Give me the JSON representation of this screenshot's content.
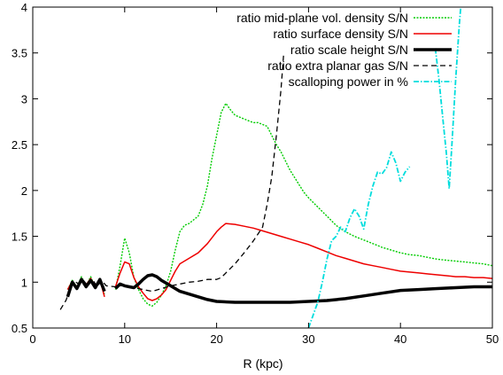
{
  "chart_data": {
    "type": "line",
    "xlabel": "R (kpc)",
    "ylabel": "",
    "title": "",
    "xlim": [
      0,
      50
    ],
    "ylim": [
      0.5,
      4
    ],
    "xticks": [
      "0",
      "10",
      "20",
      "30",
      "40",
      "50"
    ],
    "yticks": [
      "0.5",
      "1",
      "1.5",
      "2",
      "2.5",
      "3",
      "3.5",
      "4"
    ],
    "grid": false,
    "legend_position": "top-right",
    "series": [
      {
        "name": "ratio mid-plane vol. density S/N",
        "color": "#00cc00",
        "dash": "dotted-dense",
        "segments": [
          [
            [
              3.8,
              0.92
            ],
            [
              4.3,
              1.02
            ],
            [
              4.8,
              0.95
            ],
            [
              5.3,
              1.06
            ],
            [
              5.8,
              0.96
            ],
            [
              6.3,
              1.06
            ],
            [
              6.8,
              0.94
            ],
            [
              7.3,
              1.04
            ],
            [
              7.8,
              0.86
            ]
          ],
          [
            [
              9.0,
              0.92
            ],
            [
              9.5,
              1.18
            ],
            [
              10.0,
              1.48
            ],
            [
              10.5,
              1.32
            ],
            [
              11.0,
              1.05
            ],
            [
              11.5,
              0.92
            ],
            [
              12.0,
              0.82
            ],
            [
              12.5,
              0.76
            ],
            [
              13.0,
              0.74
            ],
            [
              13.5,
              0.78
            ],
            [
              14.0,
              0.86
            ],
            [
              14.5,
              0.96
            ],
            [
              15.0,
              1.12
            ],
            [
              15.5,
              1.35
            ],
            [
              16.0,
              1.55
            ],
            [
              16.5,
              1.62
            ],
            [
              17.0,
              1.64
            ],
            [
              17.5,
              1.68
            ],
            [
              18.0,
              1.72
            ],
            [
              18.5,
              1.85
            ],
            [
              19.0,
              2.05
            ],
            [
              19.5,
              2.35
            ],
            [
              20.0,
              2.6
            ],
            [
              20.5,
              2.85
            ],
            [
              21.0,
              2.95
            ],
            [
              21.5,
              2.88
            ],
            [
              22.0,
              2.82
            ],
            [
              22.5,
              2.8
            ],
            [
              23.0,
              2.78
            ],
            [
              23.5,
              2.76
            ],
            [
              24.0,
              2.74
            ],
            [
              24.5,
              2.74
            ],
            [
              25.0,
              2.72
            ],
            [
              25.5,
              2.7
            ],
            [
              26.0,
              2.6
            ],
            [
              26.5,
              2.5
            ],
            [
              27.0,
              2.42
            ],
            [
              27.5,
              2.32
            ],
            [
              28.0,
              2.22
            ],
            [
              28.5,
              2.14
            ],
            [
              29.0,
              2.06
            ],
            [
              29.5,
              1.98
            ],
            [
              30.0,
              1.92
            ],
            [
              31.0,
              1.82
            ],
            [
              32.0,
              1.72
            ],
            [
              33.0,
              1.62
            ],
            [
              34.0,
              1.55
            ],
            [
              35.0,
              1.5
            ],
            [
              36.0,
              1.46
            ],
            [
              37.0,
              1.42
            ],
            [
              38.0,
              1.38
            ],
            [
              39.0,
              1.35
            ],
            [
              40.0,
              1.32
            ],
            [
              41.0,
              1.3
            ],
            [
              42.0,
              1.29
            ],
            [
              43.0,
              1.27
            ],
            [
              44.0,
              1.25
            ],
            [
              45.0,
              1.24
            ],
            [
              46.0,
              1.23
            ],
            [
              47.0,
              1.22
            ],
            [
              48.0,
              1.21
            ],
            [
              49.0,
              1.2
            ],
            [
              50.0,
              1.18
            ]
          ]
        ]
      },
      {
        "name": "ratio surface density S/N",
        "color": "#ee0000",
        "dash": "solid",
        "segments": [
          [
            [
              3.8,
              0.92
            ],
            [
              4.3,
              1.01
            ],
            [
              4.8,
              0.95
            ],
            [
              5.3,
              1.04
            ],
            [
              5.8,
              0.97
            ],
            [
              6.3,
              1.04
            ],
            [
              6.8,
              0.96
            ],
            [
              7.3,
              1.03
            ],
            [
              7.8,
              0.84
            ]
          ],
          [
            [
              9.0,
              0.95
            ],
            [
              9.5,
              1.1
            ],
            [
              10.0,
              1.22
            ],
            [
              10.5,
              1.2
            ],
            [
              11.0,
              1.05
            ],
            [
              11.5,
              0.95
            ],
            [
              12.0,
              0.88
            ],
            [
              12.5,
              0.82
            ],
            [
              13.0,
              0.8
            ],
            [
              13.5,
              0.82
            ],
            [
              14.0,
              0.86
            ],
            [
              14.5,
              0.92
            ],
            [
              15.0,
              1.02
            ],
            [
              15.5,
              1.12
            ],
            [
              16.0,
              1.2
            ],
            [
              17.0,
              1.26
            ],
            [
              18.0,
              1.32
            ],
            [
              19.0,
              1.42
            ],
            [
              20.0,
              1.55
            ],
            [
              20.5,
              1.6
            ],
            [
              21.0,
              1.64
            ],
            [
              22.0,
              1.63
            ],
            [
              23.0,
              1.61
            ],
            [
              24.0,
              1.59
            ],
            [
              25.0,
              1.56
            ],
            [
              26.0,
              1.53
            ],
            [
              27.0,
              1.5
            ],
            [
              28.0,
              1.47
            ],
            [
              29.0,
              1.44
            ],
            [
              30.0,
              1.41
            ],
            [
              31.0,
              1.37
            ],
            [
              32.0,
              1.33
            ],
            [
              33.0,
              1.29
            ],
            [
              34.0,
              1.26
            ],
            [
              35.0,
              1.23
            ],
            [
              36.0,
              1.2
            ],
            [
              37.0,
              1.18
            ],
            [
              38.0,
              1.16
            ],
            [
              39.0,
              1.14
            ],
            [
              40.0,
              1.12
            ],
            [
              41.0,
              1.11
            ],
            [
              42.0,
              1.1
            ],
            [
              43.0,
              1.09
            ],
            [
              44.0,
              1.08
            ],
            [
              45.0,
              1.07
            ],
            [
              46.0,
              1.06
            ],
            [
              47.0,
              1.06
            ],
            [
              48.0,
              1.05
            ],
            [
              49.0,
              1.05
            ],
            [
              50.0,
              1.04
            ]
          ]
        ]
      },
      {
        "name": "ratio scale height S/N",
        "color": "#000000",
        "dash": "solid-thick",
        "segments": [
          [
            [
              3.8,
              0.84
            ],
            [
              4.3,
              1.0
            ],
            [
              4.8,
              0.93
            ],
            [
              5.3,
              1.03
            ],
            [
              5.8,
              0.95
            ],
            [
              6.3,
              1.02
            ],
            [
              6.8,
              0.94
            ],
            [
              7.3,
              1.03
            ],
            [
              7.8,
              0.9
            ]
          ],
          [
            [
              9.0,
              0.93
            ],
            [
              9.5,
              0.98
            ],
            [
              10.0,
              0.96
            ],
            [
              10.5,
              0.95
            ],
            [
              11.0,
              0.94
            ],
            [
              11.5,
              0.98
            ],
            [
              12.0,
              1.03
            ],
            [
              12.5,
              1.07
            ],
            [
              13.0,
              1.08
            ],
            [
              13.5,
              1.06
            ],
            [
              14.0,
              1.02
            ],
            [
              15.0,
              0.96
            ],
            [
              16.0,
              0.9
            ],
            [
              17.0,
              0.87
            ],
            [
              18.0,
              0.84
            ],
            [
              19.0,
              0.81
            ],
            [
              20.0,
              0.79
            ],
            [
              22.0,
              0.78
            ],
            [
              24.0,
              0.78
            ],
            [
              26.0,
              0.78
            ],
            [
              28.0,
              0.78
            ],
            [
              30.0,
              0.79
            ],
            [
              32.0,
              0.8
            ],
            [
              34.0,
              0.82
            ],
            [
              36.0,
              0.85
            ],
            [
              38.0,
              0.88
            ],
            [
              40.0,
              0.91
            ],
            [
              42.0,
              0.92
            ],
            [
              44.0,
              0.93
            ],
            [
              46.0,
              0.94
            ],
            [
              48.0,
              0.95
            ],
            [
              50.0,
              0.95
            ]
          ]
        ]
      },
      {
        "name": "ratio extra planar gas S/N",
        "color": "#000000",
        "dash": "dashed",
        "segments": [
          [
            [
              3.0,
              0.7
            ],
            [
              3.6,
              0.8
            ],
            [
              4.0,
              0.9
            ],
            [
              4.4,
              1.02
            ],
            [
              5.0,
              0.98
            ],
            [
              5.5,
              1.02
            ],
            [
              6.0,
              0.96
            ],
            [
              6.5,
              1.03
            ],
            [
              7.0,
              0.95
            ],
            [
              7.5,
              1.02
            ],
            [
              8.0,
              0.96
            ],
            [
              9.0,
              0.95
            ],
            [
              10.0,
              0.97
            ],
            [
              11.0,
              0.94
            ],
            [
              12.0,
              0.92
            ],
            [
              13.0,
              0.9
            ],
            [
              14.0,
              0.93
            ],
            [
              15.0,
              0.96
            ],
            [
              16.0,
              0.98
            ],
            [
              17.0,
              1.0
            ],
            [
              18.0,
              1.01
            ],
            [
              19.0,
              1.03
            ],
            [
              20.0,
              1.03
            ],
            [
              20.5,
              1.05
            ],
            [
              21.0,
              1.1
            ],
            [
              22.0,
              1.2
            ],
            [
              23.0,
              1.32
            ],
            [
              24.0,
              1.45
            ],
            [
              25.0,
              1.6
            ],
            [
              25.5,
              1.85
            ],
            [
              26.0,
              2.15
            ],
            [
              26.5,
              2.6
            ],
            [
              27.0,
              3.1
            ],
            [
              27.3,
              3.5
            ]
          ]
        ]
      },
      {
        "name": "scalloping power in %",
        "color": "#00dddd",
        "dash": "dash-dot",
        "segments": [
          [
            [
              30.0,
              0.5
            ],
            [
              31.0,
              0.78
            ],
            [
              31.5,
              1.0
            ],
            [
              32.0,
              1.25
            ],
            [
              32.5,
              1.45
            ],
            [
              33.0,
              1.5
            ],
            [
              33.5,
              1.6
            ],
            [
              34.0,
              1.55
            ],
            [
              34.5,
              1.7
            ],
            [
              35.0,
              1.8
            ],
            [
              35.5,
              1.72
            ],
            [
              36.0,
              1.58
            ],
            [
              36.5,
              1.85
            ],
            [
              37.0,
              2.05
            ],
            [
              37.5,
              2.2
            ],
            [
              38.0,
              2.18
            ],
            [
              38.5,
              2.25
            ],
            [
              39.0,
              2.42
            ],
            [
              39.5,
              2.3
            ],
            [
              40.0,
              2.1
            ],
            [
              40.5,
              2.2
            ],
            [
              41.0,
              2.26
            ]
          ],
          [
            [
              43.8,
              3.55
            ],
            [
              44.2,
              3.2
            ],
            [
              44.6,
              2.8
            ],
            [
              45.0,
              2.4
            ],
            [
              45.3,
              2.02
            ],
            [
              45.6,
              2.5
            ],
            [
              46.0,
              3.2
            ],
            [
              46.4,
              3.8
            ],
            [
              46.6,
              4.05
            ]
          ]
        ]
      }
    ]
  }
}
